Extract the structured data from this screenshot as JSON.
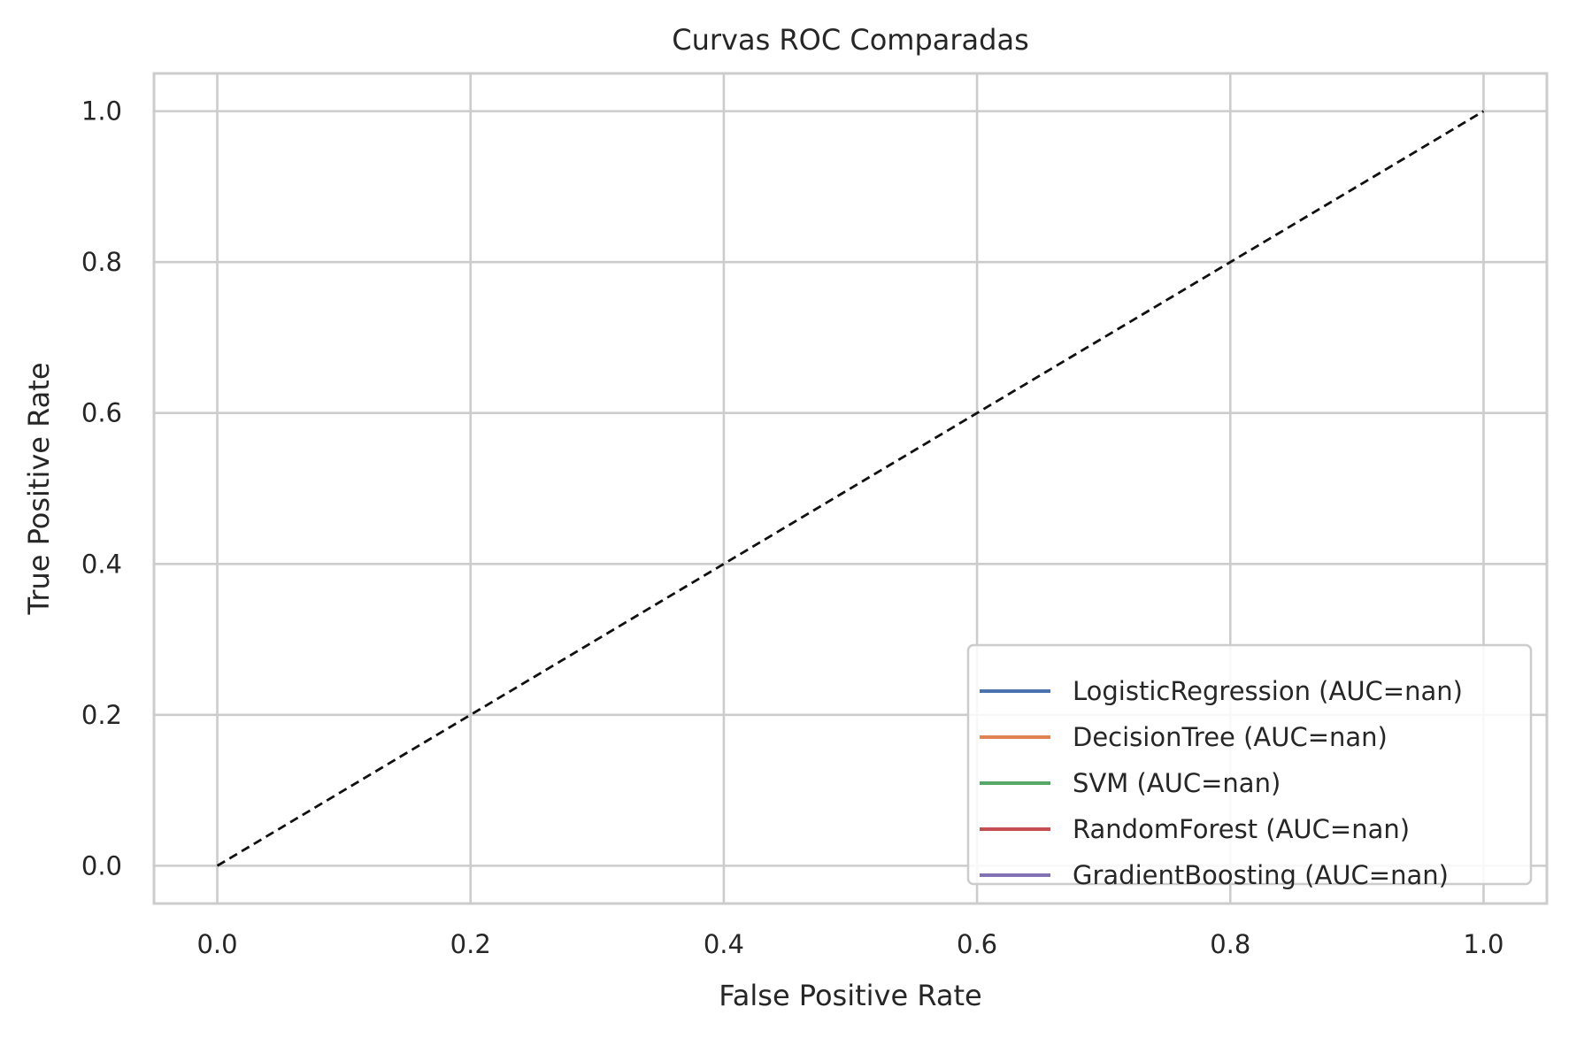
{
  "chart_data": {
    "type": "line",
    "title": "Curvas ROC Comparadas",
    "xlabel": "False Positive Rate",
    "ylabel": "True Positive Rate",
    "xlim": [
      -0.05,
      1.05
    ],
    "ylim": [
      -0.05,
      1.05
    ],
    "xticks": [
      0.0,
      0.2,
      0.4,
      0.6,
      0.8,
      1.0
    ],
    "yticks": [
      0.0,
      0.2,
      0.4,
      0.6,
      0.8,
      1.0
    ],
    "xtick_labels": [
      "0.0",
      "0.2",
      "0.4",
      "0.6",
      "0.8",
      "1.0"
    ],
    "ytick_labels": [
      "0.0",
      "0.2",
      "0.4",
      "0.6",
      "0.8",
      "1.0"
    ],
    "grid": true,
    "legend_position": "lower right",
    "series": [
      {
        "name": "LogisticRegression (AUC=nan)",
        "color": "#4C72B0",
        "x": [],
        "y": []
      },
      {
        "name": "DecisionTree (AUC=nan)",
        "color": "#DD8452",
        "x": [],
        "y": []
      },
      {
        "name": "SVM (AUC=nan)",
        "color": "#55A868",
        "x": [],
        "y": []
      },
      {
        "name": "RandomForest (AUC=nan)",
        "color": "#C44E52",
        "x": [],
        "y": []
      },
      {
        "name": "GradientBoosting (AUC=nan)",
        "color": "#8172B3",
        "x": [],
        "y": []
      }
    ],
    "reference_line": {
      "x": [
        0,
        1
      ],
      "y": [
        0,
        1
      ],
      "color": "#000000",
      "style": "dashed"
    }
  }
}
